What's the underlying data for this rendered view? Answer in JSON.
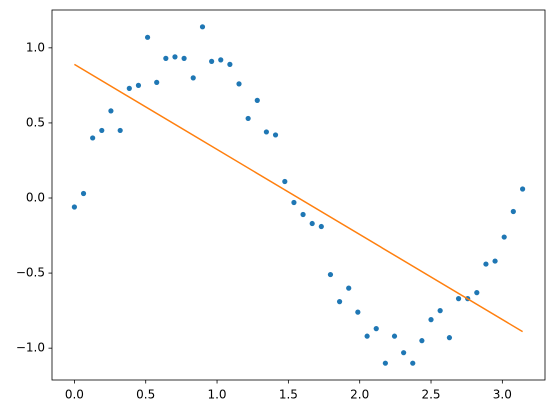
{
  "chart_data": {
    "type": "scatter",
    "xlim": [
      -0.157,
      3.299
    ],
    "ylim": [
      -1.212,
      1.252
    ],
    "xticks": [
      {
        "value": 0,
        "label": "0.0"
      },
      {
        "value": 0.5,
        "label": "0.5"
      },
      {
        "value": 1,
        "label": "1.0"
      },
      {
        "value": 1.5,
        "label": "1.5"
      },
      {
        "value": 2,
        "label": "2.0"
      },
      {
        "value": 2.5,
        "label": "2.5"
      },
      {
        "value": 3,
        "label": "3.0"
      }
    ],
    "yticks": [
      {
        "value": -1,
        "label": "−1.0"
      },
      {
        "value": -0.5,
        "label": "−0.5"
      },
      {
        "value": 0,
        "label": "0.0"
      },
      {
        "value": 0.5,
        "label": "0.5"
      },
      {
        "value": 1,
        "label": "1.0"
      }
    ],
    "series": [
      {
        "type": "scatter",
        "color": "#1f77b4",
        "x": [
          0,
          0.064,
          0.128,
          0.192,
          0.256,
          0.321,
          0.385,
          0.449,
          0.513,
          0.577,
          0.641,
          0.705,
          0.769,
          0.833,
          0.898,
          0.962,
          1.026,
          1.09,
          1.154,
          1.218,
          1.282,
          1.346,
          1.41,
          1.475,
          1.539,
          1.603,
          1.667,
          1.731,
          1.795,
          1.859,
          1.923,
          1.987,
          2.052,
          2.116,
          2.18,
          2.244,
          2.308,
          2.372,
          2.436,
          2.5,
          2.564,
          2.629,
          2.693,
          2.757,
          2.821,
          2.885,
          2.949,
          3.013,
          3.077,
          3.142
        ],
        "values": [
          -0.06,
          0.03,
          0.4,
          0.45,
          0.58,
          0.45,
          0.73,
          0.75,
          1.07,
          0.77,
          0.93,
          0.94,
          0.93,
          0.8,
          1.14,
          0.91,
          0.92,
          0.89,
          0.76,
          0.53,
          0.65,
          0.44,
          0.42,
          0.11,
          -0.03,
          -0.11,
          -0.17,
          -0.19,
          -0.51,
          -0.69,
          -0.6,
          -0.76,
          -0.92,
          -0.87,
          -1.1,
          -0.92,
          -1.03,
          -1.1,
          -0.95,
          -0.81,
          -0.75,
          -0.93,
          -0.67,
          -0.67,
          -0.63,
          -0.44,
          -0.42,
          -0.26,
          -0.09,
          0.06
        ]
      },
      {
        "type": "line",
        "color": "#ff7f0e",
        "x": [
          0,
          3.142
        ],
        "values": [
          0.89,
          -0.89
        ]
      }
    ]
  }
}
